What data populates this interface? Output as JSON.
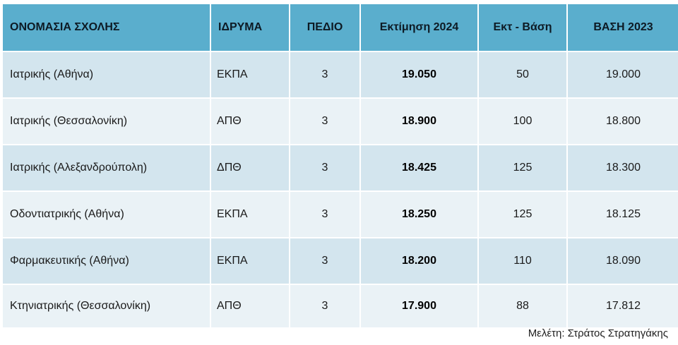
{
  "table": {
    "headers": {
      "school": "ΟΝΟΜΑΣΙΑ ΣΧΟΛΗΣ",
      "institution": "ΙΔΡΥΜΑ",
      "field": "ΠΕΔΙΟ",
      "estimate": "Εκτίμηση  2024",
      "diff": "Εκτ - Βάση",
      "base": "ΒΑΣΗ 2023"
    },
    "rows": [
      {
        "school": "Ιατρικής (Αθήνα)",
        "institution": "ΕΚΠΑ",
        "field": "3",
        "estimate": "19.050",
        "diff": "50",
        "base": "19.000"
      },
      {
        "school": "Ιατρικής (Θεσσαλονίκη)",
        "institution": "ΑΠΘ",
        "field": "3",
        "estimate": "18.900",
        "diff": "100",
        "base": "18.800"
      },
      {
        "school": "Ιατρικής  (Αλεξανδρούπολη)",
        "institution": "ΔΠΘ",
        "field": "3",
        "estimate": "18.425",
        "diff": "125",
        "base": "18.300"
      },
      {
        "school": "Οδοντιατρικής (Αθήνα)",
        "institution": "ΕΚΠΑ",
        "field": "3",
        "estimate": "18.250",
        "diff": "125",
        "base": "18.125"
      },
      {
        "school": "Φαρμακευτικής (Αθήνα)",
        "institution": "ΕΚΠΑ",
        "field": "3",
        "estimate": "18.200",
        "diff": "110",
        "base": "18.090"
      },
      {
        "school": "Κτηνιατρικής (Θεσσαλονίκη)",
        "institution": "ΑΠΘ",
        "field": "3",
        "estimate": "17.900",
        "diff": "88",
        "base": "17.812"
      }
    ]
  },
  "credit": "Μελέτη: Στράτος Στρατηγάκης",
  "colors": {
    "header_bg": "#5aaecd",
    "row_odd_bg": "#d3e5ee",
    "row_even_bg": "#eaf2f6"
  }
}
